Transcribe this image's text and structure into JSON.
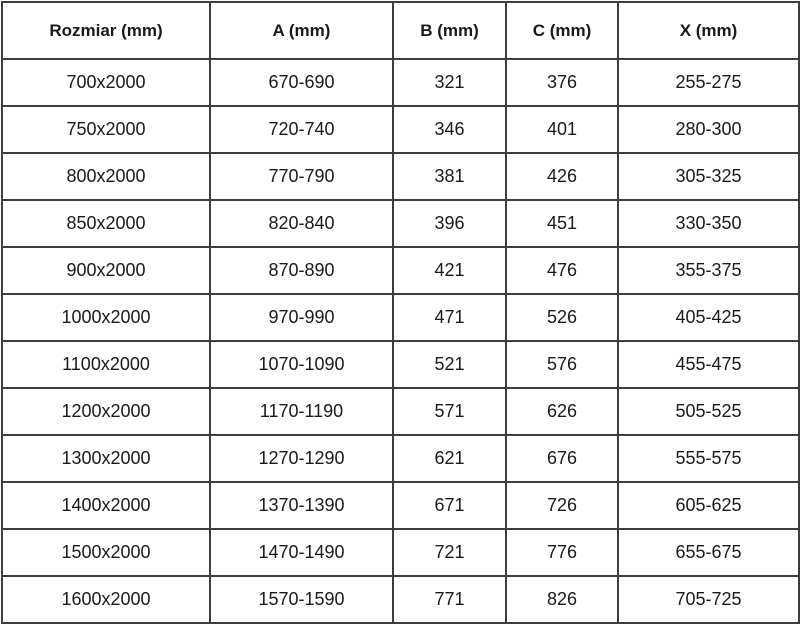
{
  "table": {
    "columns": {
      "rozmiar": "Rozmiar (mm)",
      "a": "A (mm)",
      "b": "B (mm)",
      "c": "C (mm)",
      "x": "X (mm)"
    },
    "rows": [
      [
        "700x2000",
        "670-690",
        "321",
        "376",
        "255-275"
      ],
      [
        "750x2000",
        "720-740",
        "346",
        "401",
        "280-300"
      ],
      [
        "800x2000",
        "770-790",
        "381",
        "426",
        "305-325"
      ],
      [
        "850x2000",
        "820-840",
        "396",
        "451",
        "330-350"
      ],
      [
        "900x2000",
        "870-890",
        "421",
        "476",
        "355-375"
      ],
      [
        "1000x2000",
        "970-990",
        "471",
        "526",
        "405-425"
      ],
      [
        "1100x2000",
        "1070-1090",
        "521",
        "576",
        "455-475"
      ],
      [
        "1200x2000",
        "1170-1190",
        "571",
        "626",
        "505-525"
      ],
      [
        "1300x2000",
        "1270-1290",
        "621",
        "676",
        "555-575"
      ],
      [
        "1400x2000",
        "1370-1390",
        "671",
        "726",
        "605-625"
      ],
      [
        "1500x2000",
        "1470-1490",
        "721",
        "776",
        "655-675"
      ],
      [
        "1600x2000",
        "1570-1590",
        "771",
        "826",
        "705-725"
      ]
    ],
    "colors": {
      "border": "#3d3d3d",
      "text": "#1a1a1a",
      "background": "#ffffff"
    }
  }
}
